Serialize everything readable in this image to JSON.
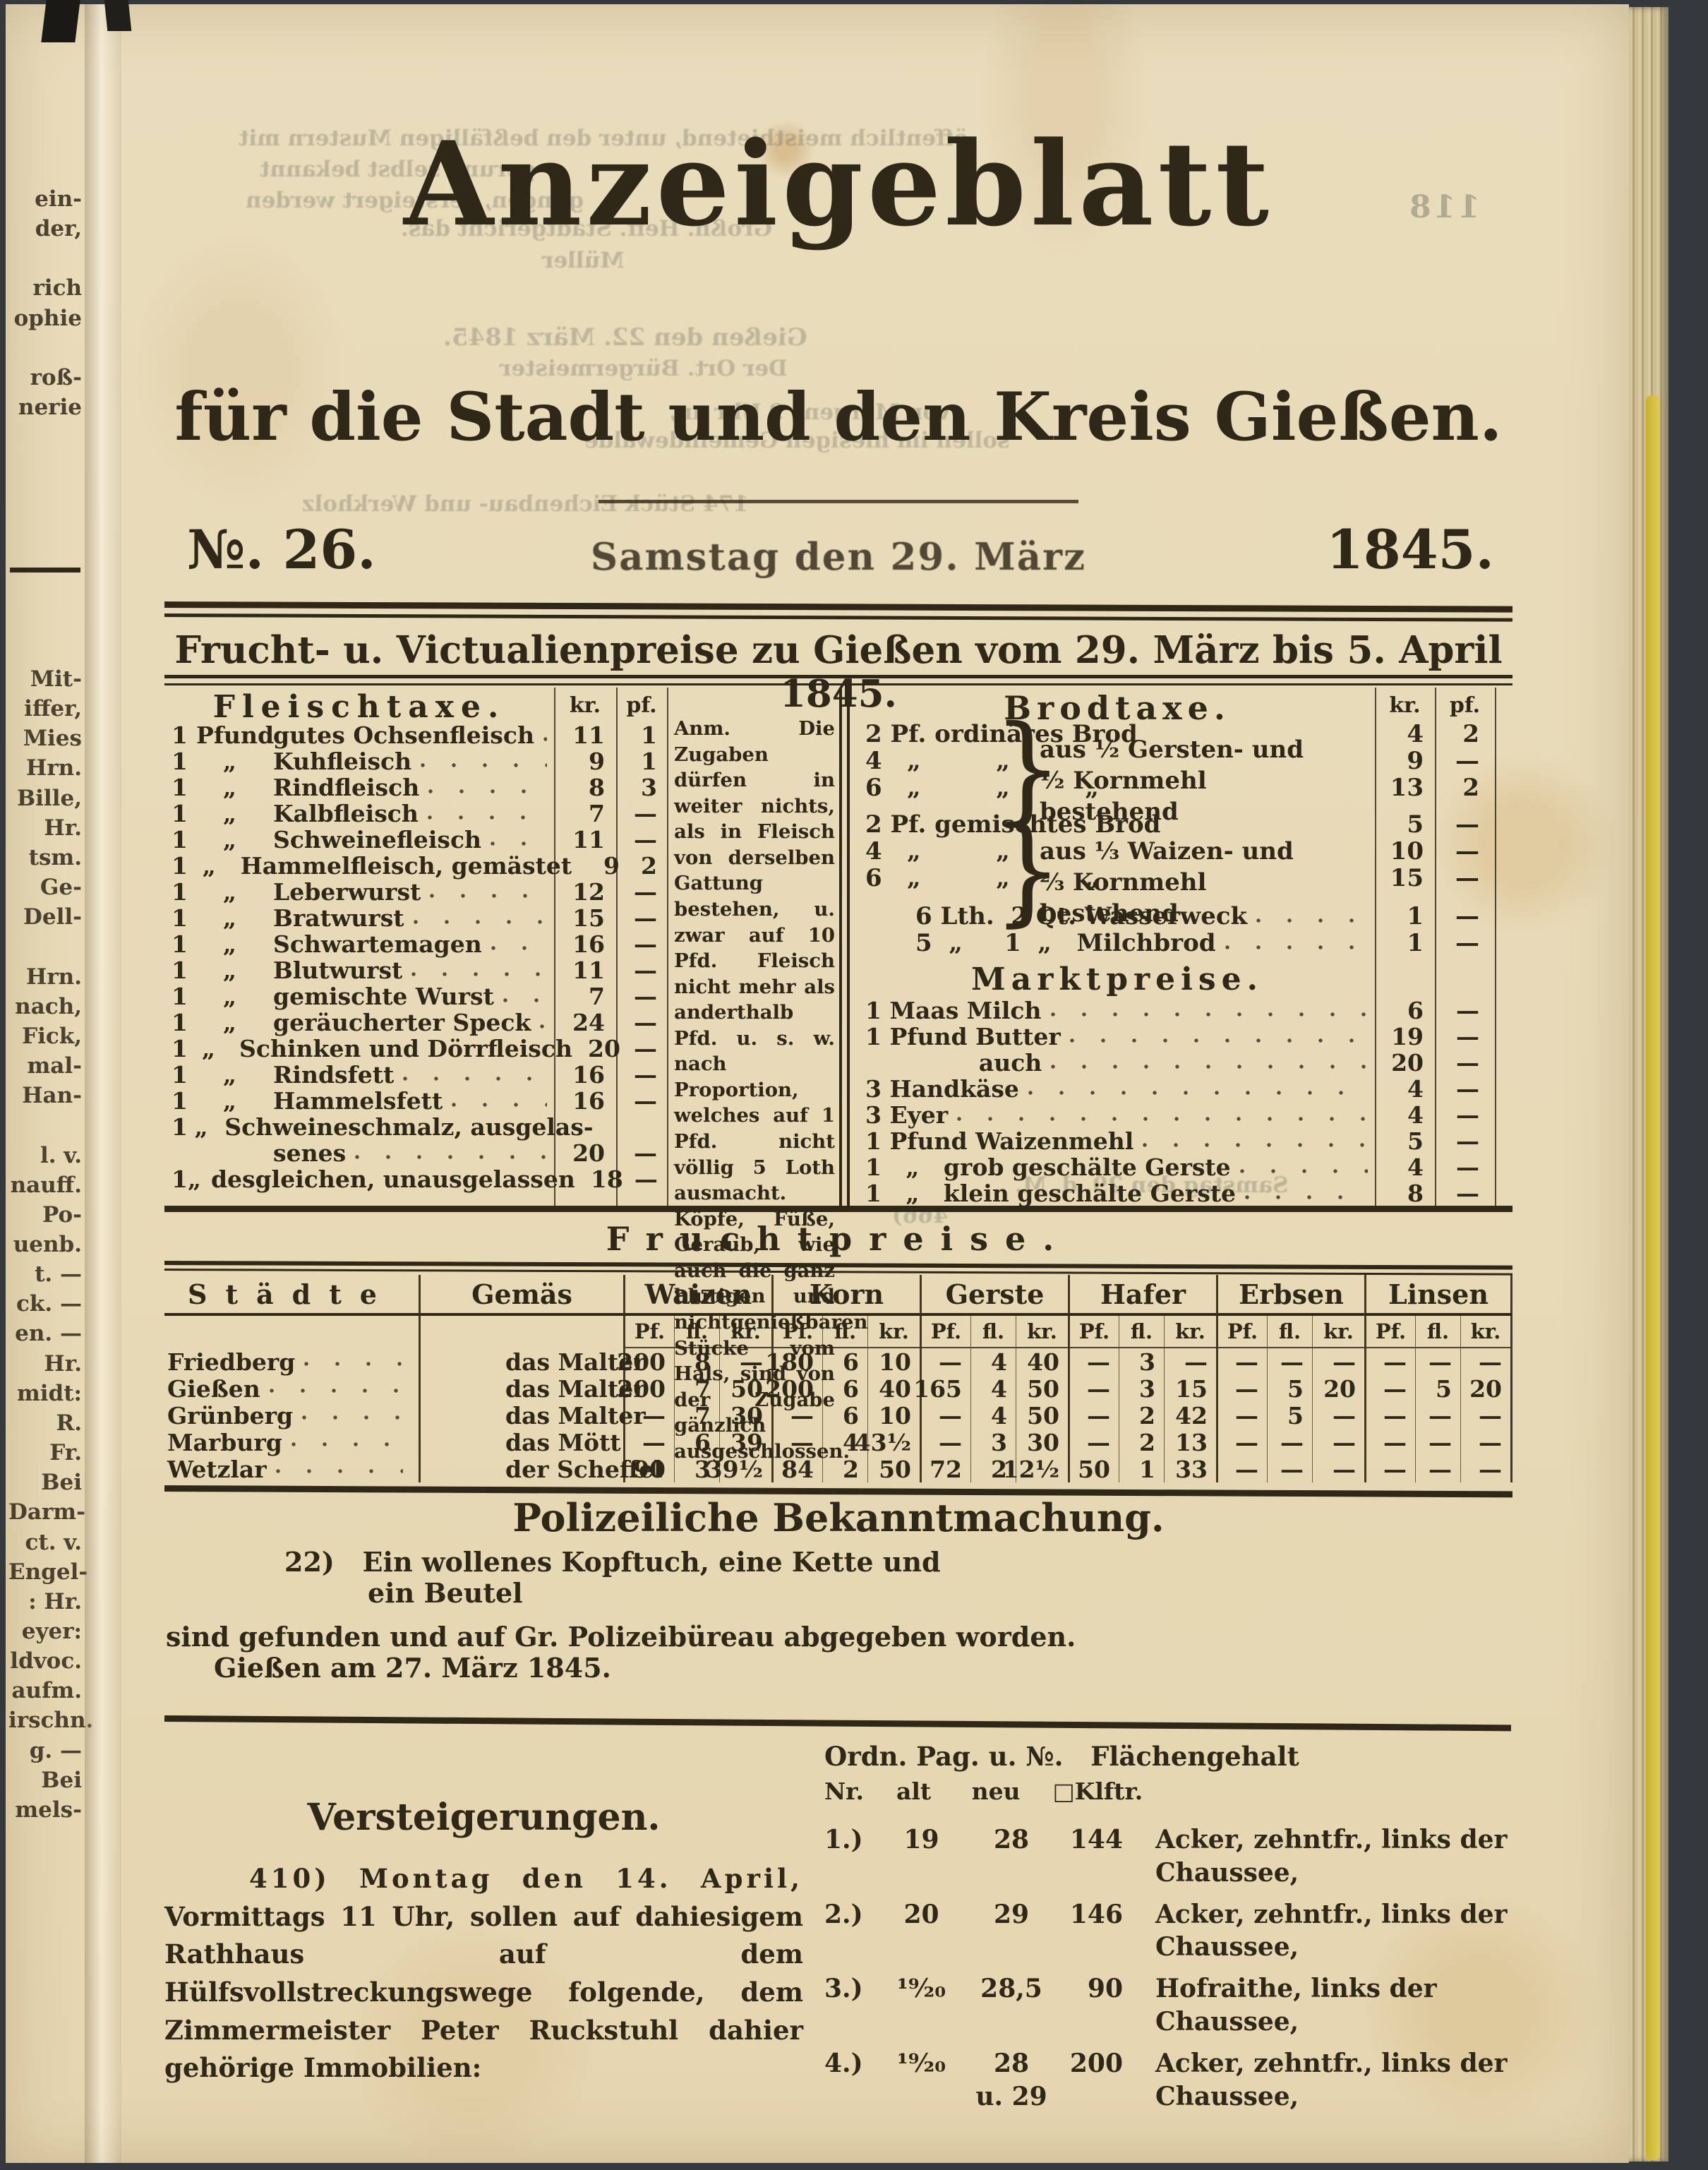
{
  "page": {
    "bleed_page_number": "118",
    "masthead_line1": "Anzeigeblatt",
    "masthead_line2": "für die Stadt und den Kreis Gießen.",
    "issue_no": "№. 26.",
    "issue_date": "Samstag den 29. März",
    "issue_year": "1845.",
    "subtitle": "Frucht- u. Victualienpreise zu Gießen vom 29. März bis 5. April 1845."
  },
  "left_margin": {
    "top": "ein-\nder,\n\nrich\nophie\n\nroß-\nnerie",
    "bottom": "Mit-\niffer,\nMies\nHrn.\nBille,\nHr.\ntsm.\nGe-\nDell-\n\nHrn.\nnach,\nFick,\nmal-\nHan-\n\nl. v.\nnauff.\nPo-\nuenb.\nt. —\nck. —\nen. —\nHr.\nmidt:\nR.\nFr.\nBei\nDarm-\nct. v.\nEngel-\n: Hr.\neyer:\nldvoc.\naufm.\nirschn.\ng. —\nBei\nmels-"
  },
  "bleedthrough": [
    "öffentlich meistbietend, unter den beßfälligen Mustern mit",
    "gerung selbst bekannt",
    "gungen, versteigert werden",
    "Gießen den 22. März 1845.",
    "Großh. Heff. Stadtgericht das.",
    "Müller",
    "von Morgens 9 Uhr an,",
    "sollen im hiesigen Gemeindewalde",
    "174 Stück Eichenbau- und Werkholz",
    "Samstag den 29. d. M.",
    "466)",
    "Der Ort. Bürgermeister"
  ],
  "fleischtaxe": {
    "title": "Fleischtaxe.",
    "kr": "kr.",
    "pf": "pf.",
    "rows": [
      {
        "q": "1",
        "u": "Pfund",
        "item": "gutes Ochsenfleisch",
        "kr": "11",
        "pf": "1"
      },
      {
        "q": "1",
        "u": "„",
        "item": "Kuhfleisch",
        "kr": "9",
        "pf": "1"
      },
      {
        "q": "1",
        "u": "„",
        "item": "Rindfleisch",
        "kr": "8",
        "pf": "3"
      },
      {
        "q": "1",
        "u": "„",
        "item": "Kalbfleisch",
        "kr": "7",
        "pf": "—"
      },
      {
        "q": "1",
        "u": "„",
        "item": "Schweinefleisch",
        "kr": "11",
        "pf": "—"
      },
      {
        "q": "1",
        "u": "„",
        "item": "Hammelfleisch, gemästet",
        "kr": "9",
        "pf": "2"
      },
      {
        "q": "1",
        "u": "„",
        "item": "Leberwurst",
        "kr": "12",
        "pf": "—"
      },
      {
        "q": "1",
        "u": "„",
        "item": "Bratwurst",
        "kr": "15",
        "pf": "—"
      },
      {
        "q": "1",
        "u": "„",
        "item": "Schwartemagen",
        "kr": "16",
        "pf": "—"
      },
      {
        "q": "1",
        "u": "„",
        "item": "Blutwurst",
        "kr": "11",
        "pf": "—"
      },
      {
        "q": "1",
        "u": "„",
        "item": "gemischte Wurst",
        "kr": "7",
        "pf": "—"
      },
      {
        "q": "1",
        "u": "„",
        "item": "geräucherter Speck",
        "kr": "24",
        "pf": "—"
      },
      {
        "q": "1",
        "u": "„",
        "item": "Schinken und Dörrfleisch",
        "kr": "20",
        "pf": "—"
      },
      {
        "q": "1",
        "u": "„",
        "item": "Rindsfett",
        "kr": "16",
        "pf": "—"
      },
      {
        "q": "1",
        "u": "„",
        "item": "Hammelsfett",
        "kr": "16",
        "pf": "—"
      },
      {
        "q": "1",
        "u": "„",
        "item": "Schweineschmalz, ausgelas-",
        "kr": "",
        "pf": ""
      },
      {
        "q": "",
        "u": "",
        "item": "senes",
        "kr": "20",
        "pf": "—"
      },
      {
        "q": "1",
        "u": "„",
        "item": "desgleichen, unausgelassen",
        "kr": "18",
        "pf": "—"
      }
    ],
    "anm": "Anm. Die Zugaben dürfen in weiter nichts, als in Fleisch von derselben Gattung bestehen, u. zwar auf 10 Pfd. Fleisch nicht mehr als anderthalb Pfd. u. s. w. nach Proportion, welches auf 1 Pfd. nicht völlig 5 Loth ausmacht. Köpfe, Füße, Geraub, wie auch die ganz blutigen und nichtgenießbaren Stücke vom Hals, sind von der Zugabe gänzlich ausgeschlossen."
  },
  "brodtaxe": {
    "title": "Brodtaxe.",
    "kr": "kr.",
    "pf": "pf.",
    "note1": "aus ½ Gersten- und\n½ Kornmehl bestehend",
    "note2": "aus ⅓ Waizen- und\n⅔ Kornmehl bestehend",
    "rows": [
      {
        "text": "2 Pf. ordinäres Brod",
        "kr": "4",
        "pf": "2"
      },
      {
        "text": "4   „         „",
        "kr": "9",
        "pf": "—"
      },
      {
        "text": "6   „         „         „",
        "kr": "13",
        "pf": "2"
      },
      {
        "text": "2 Pf. gemischtes Brod",
        "kr": "5",
        "pf": "—"
      },
      {
        "text": "4   „         „",
        "kr": "10",
        "pf": "—"
      },
      {
        "text": "6   „         „         „",
        "kr": "15",
        "pf": "—"
      },
      {
        "text": "      6 Lth.  2 Qt. Wasserweck",
        "kr": "1",
        "pf": "—"
      },
      {
        "text": "      5  „     1  „   Milchbrod",
        "kr": "1",
        "pf": "—"
      }
    ]
  },
  "marktpreise": {
    "title": "Marktpreise.",
    "rows": [
      {
        "text": "1 Maas Milch",
        "kr": "6",
        "pf": "—"
      },
      {
        "text": "1 Pfund Butter",
        "kr": "19",
        "pf": "—"
      },
      {
        "text": "              auch",
        "kr": "20",
        "pf": "—"
      },
      {
        "text": "3 Handkäse",
        "kr": "4",
        "pf": "—"
      },
      {
        "text": "3 Eyer",
        "kr": "4",
        "pf": "—"
      },
      {
        "text": "1 Pfund Waizenmehl",
        "kr": "5",
        "pf": "—"
      },
      {
        "text": "1   „   grob geschälte Gerste",
        "kr": "4",
        "pf": "—"
      },
      {
        "text": "1   „   klein geschälte Gerste",
        "kr": "8",
        "pf": "—"
      }
    ]
  },
  "fruchtpreise": {
    "title": "Fruchtpreise.",
    "col_city": "Städte",
    "col_measure": "Gemäs",
    "grains": [
      "Waizen",
      "Korn",
      "Gerste",
      "Hafer",
      "Erbsen",
      "Linsen"
    ],
    "sub_pf": "Pf.",
    "sub_fl": "fl.",
    "sub_kr": "kr.",
    "rows": [
      {
        "city": "Friedberg",
        "measure": "das Malter",
        "v": [
          "200",
          "8",
          "—",
          "180",
          "6",
          "10",
          "—",
          "4",
          "40",
          "—",
          "3",
          "—",
          "—",
          "—",
          "—",
          "—",
          "—",
          "—"
        ]
      },
      {
        "city": "Gießen",
        "measure": "das Malter",
        "v": [
          "200",
          "7",
          "50",
          "200",
          "6",
          "40",
          "165",
          "4",
          "50",
          "—",
          "3",
          "15",
          "—",
          "5",
          "20",
          "—",
          "5",
          "20"
        ]
      },
      {
        "city": "Grünberg",
        "measure": "das Malter",
        "v": [
          "—",
          "7",
          "30",
          "—",
          "6",
          "10",
          "—",
          "4",
          "50",
          "—",
          "2",
          "42",
          "—",
          "5",
          "—",
          "—",
          "—",
          "—"
        ]
      },
      {
        "city": "Marburg",
        "measure": "das Mött",
        "v": [
          "—",
          "6",
          "39",
          "—",
          "4",
          "43½",
          "—",
          "3",
          "30",
          "—",
          "2",
          "13",
          "—",
          "—",
          "—",
          "—",
          "—",
          "—"
        ]
      },
      {
        "city": "Wetzlar",
        "measure": "der Scheffel",
        "v": [
          "90",
          "3",
          "39½",
          "84",
          "2",
          "50",
          "72",
          "2",
          "12½",
          "50",
          "1",
          "33",
          "—",
          "—",
          "—",
          "—",
          "—",
          "—"
        ]
      }
    ]
  },
  "polizei": {
    "title": "Polizeiliche Bekanntmachung.",
    "line1": "22)   Ein wollenes Kopftuch, eine Kette und",
    "line2": "ein Beutel",
    "line3": "sind gefunden und auf Gr. Polizeibüreau abgegeben worden.",
    "line4": "Gießen am 27. März 1845."
  },
  "versteigerungen": {
    "title": "Versteigerungen.",
    "para": "410)  Montag den 14. April, Vormittags 11 Uhr, sollen auf dahiesigem Rathhaus auf dem Hülfsvollstreckungswege folgende, dem Zimmermeister Peter Ruckstuhl dahier gehörige Immobilien:"
  },
  "immobilien": {
    "header1": "Ordn. Pag. u. №.   Flächengehalt",
    "header2": "Nr.    alt     neu    □Klftr.",
    "rows": [
      {
        "nr": "1.)",
        "alt": "19",
        "neu": "28",
        "qm": "144",
        "desc": "Acker, zehntfr., links der Chaussee,"
      },
      {
        "nr": "2.)",
        "alt": "20",
        "neu": "29",
        "qm": "146",
        "desc": "Acker, zehntfr., links der Chaussee,"
      },
      {
        "nr": "3.)",
        "alt": "¹⁹⁄₂₀",
        "neu": "28,5",
        "qm": "90",
        "desc": "Hofraithe, links der Chaussee,"
      },
      {
        "nr": "4.)",
        "alt": "¹⁹⁄₂₀",
        "neu": "28\nu. 29",
        "qm": "200",
        "desc": "Acker, zehntfr., links der Chaussee,"
      }
    ]
  }
}
